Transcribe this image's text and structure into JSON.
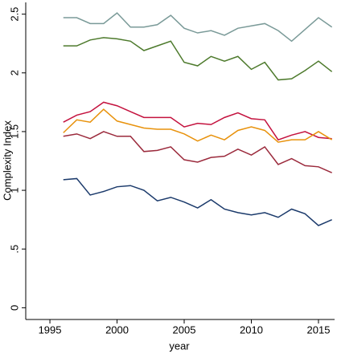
{
  "chart_data": {
    "type": "line",
    "x_label": "year",
    "y_label": "Complexity Index",
    "x": [
      1996,
      1997,
      1998,
      1999,
      2000,
      2001,
      2002,
      2003,
      2004,
      2005,
      2006,
      2007,
      2008,
      2009,
      2010,
      2011,
      2012,
      2013,
      2014,
      2015,
      2016
    ],
    "series": [
      {
        "color": "#7a9a98",
        "values": [
          2.47,
          2.47,
          2.42,
          2.42,
          2.51,
          2.39,
          2.39,
          2.41,
          2.49,
          2.38,
          2.34,
          2.36,
          2.32,
          2.38,
          2.4,
          2.42,
          2.36,
          2.27,
          2.37,
          2.47,
          2.39
        ]
      },
      {
        "color": "#4d7a2c",
        "values": [
          2.23,
          2.23,
          2.28,
          2.3,
          2.29,
          2.27,
          2.19,
          2.23,
          2.27,
          2.09,
          2.06,
          2.14,
          2.1,
          2.14,
          2.03,
          2.09,
          1.94,
          1.95,
          2.02,
          2.1,
          2.01
        ]
      },
      {
        "color": "#c4123e",
        "values": [
          1.58,
          1.64,
          1.67,
          1.75,
          1.72,
          1.67,
          1.62,
          1.62,
          1.62,
          1.54,
          1.57,
          1.56,
          1.62,
          1.66,
          1.61,
          1.6,
          1.43,
          1.47,
          1.5,
          1.45,
          1.44
        ]
      },
      {
        "color": "#e8920c",
        "values": [
          1.49,
          1.6,
          1.58,
          1.69,
          1.59,
          1.56,
          1.53,
          1.52,
          1.52,
          1.48,
          1.42,
          1.47,
          1.43,
          1.51,
          1.54,
          1.51,
          1.41,
          1.43,
          1.43,
          1.5,
          1.43
        ]
      },
      {
        "color": "#9b2a3c",
        "values": [
          1.46,
          1.48,
          1.44,
          1.5,
          1.46,
          1.46,
          1.33,
          1.34,
          1.37,
          1.26,
          1.24,
          1.28,
          1.29,
          1.35,
          1.3,
          1.37,
          1.22,
          1.27,
          1.21,
          1.2,
          1.15
        ]
      },
      {
        "color": "#1b3a6b",
        "values": [
          1.09,
          1.1,
          0.96,
          0.99,
          1.03,
          1.04,
          1.0,
          0.91,
          0.94,
          0.9,
          0.85,
          0.92,
          0.84,
          0.81,
          0.79,
          0.81,
          0.77,
          0.84,
          0.8,
          0.7,
          0.75
        ]
      }
    ],
    "xlim": [
      1993.2,
      2016.2
    ],
    "xticks": [
      1995,
      2000,
      2005,
      2010,
      2015
    ],
    "ylim": [
      -0.1,
      2.6
    ],
    "yticks": [
      0,
      {
        "value": 0.5,
        "label": ".5"
      },
      1,
      1.5,
      2,
      2.5
    ],
    "grid": false
  }
}
